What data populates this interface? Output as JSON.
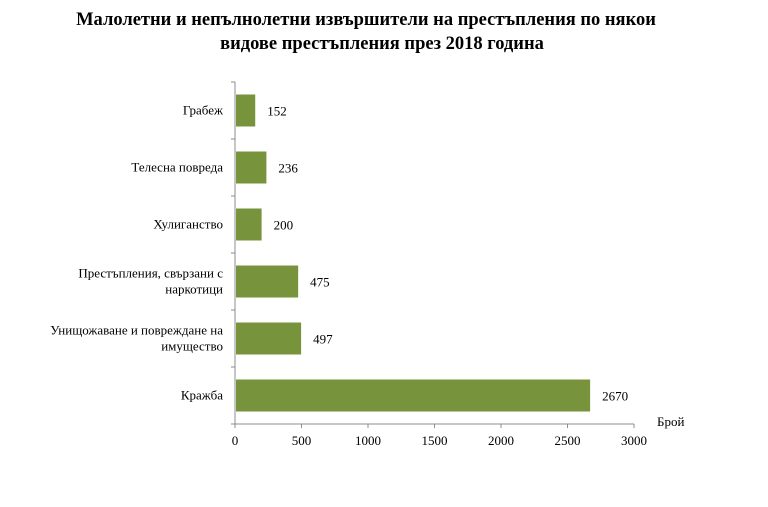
{
  "chart_data": {
    "type": "bar",
    "orientation": "horizontal",
    "title": [
      "Малолетни и непълнолетни извършители на престъпления по някои",
      "видове престъпления през 2018 година"
    ],
    "categories": [
      "Грабеж",
      "Телесна повреда",
      "Хулиганство",
      [
        "Престъпления, свързани с",
        "наркотици"
      ],
      [
        "Унищожаване и повреждане на",
        "имущество"
      ],
      "Кражба"
    ],
    "values": [
      152,
      236,
      200,
      475,
      497,
      2670
    ],
    "xlabel": "Брой",
    "ylabel": "",
    "xlim": [
      0,
      3000
    ],
    "xticks": [
      0,
      500,
      1000,
      1500,
      2000,
      2500,
      3000
    ],
    "bar_color": "#77933C",
    "grid": false,
    "legend": "none"
  }
}
